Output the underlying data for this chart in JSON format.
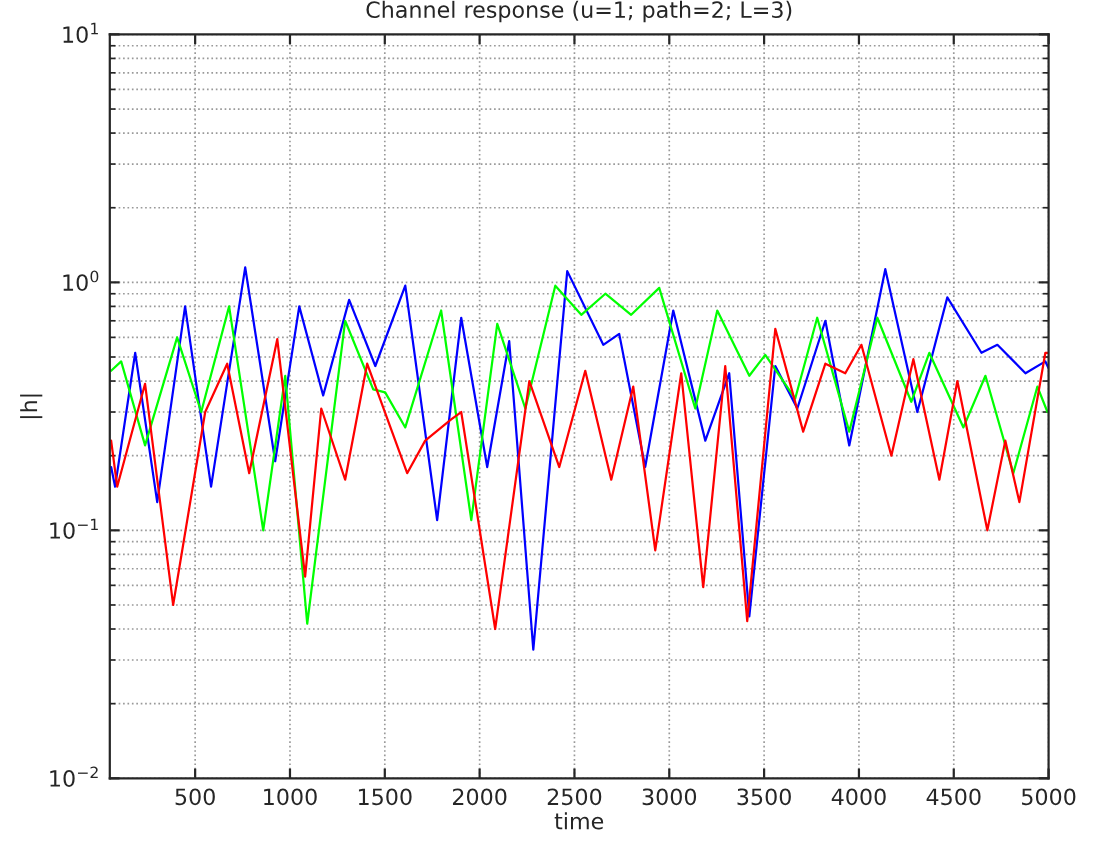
{
  "chart_data": {
    "type": "line",
    "title": "Channel response (u=1; path=2; L=3)",
    "xlabel": "time",
    "ylabel": "|h|",
    "series": [
      {
        "color": "#0000ff",
        "x": [
          57,
          78,
          184,
          300,
          447,
          584,
          764,
          922,
          1049,
          1175,
          1312,
          1450,
          1608,
          1776,
          1903,
          2040,
          2156,
          2283,
          2462,
          2652,
          2736,
          2873,
          3021,
          3190,
          3316,
          3422,
          3559,
          3675,
          3823,
          3949,
          4139,
          4308,
          4466,
          4646,
          4730,
          4878,
          4983,
          5000
        ],
        "values": [
          0.18,
          0.15,
          0.52,
          0.13,
          0.8,
          0.15,
          1.15,
          0.19,
          0.8,
          0.35,
          0.85,
          0.46,
          0.97,
          0.11,
          0.72,
          0.18,
          0.58,
          0.033,
          1.11,
          0.56,
          0.62,
          0.18,
          0.77,
          0.23,
          0.43,
          0.045,
          0.46,
          0.31,
          0.7,
          0.22,
          1.13,
          0.3,
          0.87,
          0.52,
          0.56,
          0.43,
          0.48,
          0.45
        ]
      },
      {
        "color": "#00ff00",
        "x": [
          57,
          110,
          236,
          405,
          532,
          679,
          859,
          975,
          1091,
          1291,
          1439,
          1502,
          1608,
          1797,
          1956,
          2093,
          2241,
          2399,
          2536,
          2663,
          2799,
          2947,
          3137,
          3253,
          3422,
          3506,
          3664,
          3780,
          3949,
          4097,
          4276,
          4371,
          4551,
          4667,
          4814,
          4941,
          4994
        ],
        "values": [
          0.44,
          0.48,
          0.22,
          0.6,
          0.3,
          0.8,
          0.1,
          0.42,
          0.042,
          0.7,
          0.37,
          0.36,
          0.26,
          0.77,
          0.11,
          0.68,
          0.31,
          0.97,
          0.74,
          0.9,
          0.74,
          0.95,
          0.31,
          0.77,
          0.42,
          0.51,
          0.34,
          0.72,
          0.25,
          0.72,
          0.33,
          0.52,
          0.26,
          0.42,
          0.17,
          0.38,
          0.3
        ]
      },
      {
        "color": "#ff0000",
        "x": [
          57,
          89,
          236,
          384,
          553,
          669,
          785,
          933,
          1080,
          1165,
          1291,
          1407,
          1618,
          1713,
          1850,
          1903,
          2082,
          2262,
          2420,
          2557,
          2694,
          2810,
          2926,
          3063,
          3179,
          3295,
          3411,
          3559,
          3706,
          3823,
          3928,
          4013,
          4171,
          4287,
          4424,
          4519,
          4677,
          4772,
          4846,
          4983,
          5000
        ],
        "values": [
          0.23,
          0.15,
          0.39,
          0.05,
          0.3,
          0.47,
          0.17,
          0.59,
          0.065,
          0.31,
          0.16,
          0.47,
          0.17,
          0.23,
          0.28,
          0.3,
          0.04,
          0.4,
          0.18,
          0.44,
          0.16,
          0.38,
          0.083,
          0.43,
          0.059,
          0.46,
          0.043,
          0.65,
          0.25,
          0.47,
          0.43,
          0.56,
          0.2,
          0.49,
          0.16,
          0.4,
          0.1,
          0.23,
          0.13,
          0.52,
          0.52
        ]
      }
    ],
    "log": "y",
    "xlim": [
      50,
      5000
    ],
    "ylim": [
      0.01,
      10
    ],
    "xticks": [
      500,
      1000,
      1500,
      2000,
      2500,
      3000,
      3500,
      4000,
      4500,
      5000
    ],
    "yticks": [
      {
        "value": 0.01,
        "label": "10$^{−2}$"
      },
      {
        "value": 0.1,
        "label": "10$^{−1}$"
      },
      {
        "value": 1,
        "label": "10$^{0}$"
      },
      {
        "value": 10,
        "label": "10$^{1}$"
      }
    ],
    "grid": true,
    "line_style": "solid",
    "marker": "none"
  }
}
